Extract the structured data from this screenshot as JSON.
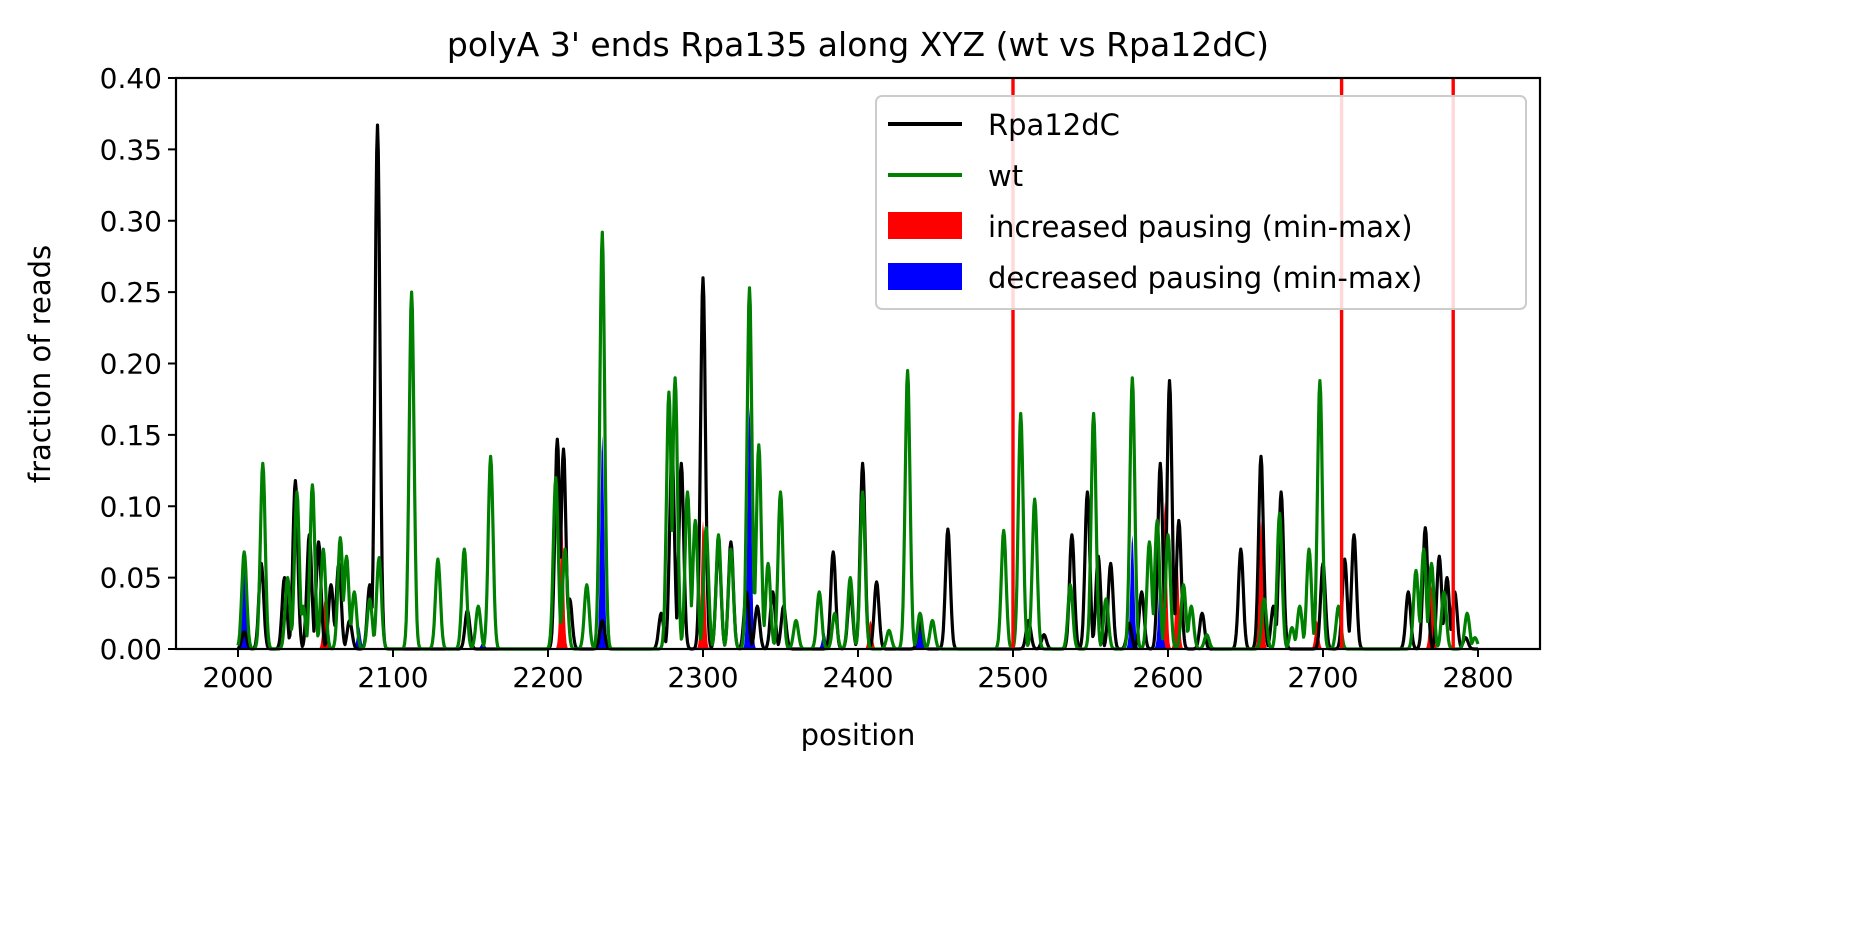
{
  "chart_data": {
    "type": "line",
    "title": "polyA 3' ends Rpa135 along XYZ (wt vs Rpa12dC)",
    "xlabel": "position",
    "ylabel": "fraction of reads",
    "xlim": [
      1960,
      2840
    ],
    "ylim": [
      0,
      0.4
    ],
    "xticks": [
      2000,
      2100,
      2200,
      2300,
      2400,
      2500,
      2600,
      2700,
      2800
    ],
    "yticks": [
      0.0,
      0.05,
      0.1,
      0.15,
      0.2,
      0.25,
      0.3,
      0.35,
      0.4
    ],
    "xtick_labels": [
      "2000",
      "2100",
      "2200",
      "2300",
      "2400",
      "2500",
      "2600",
      "2700",
      "2800"
    ],
    "ytick_labels": [
      "0.00",
      "0.05",
      "0.10",
      "0.15",
      "0.20",
      "0.25",
      "0.30",
      "0.35",
      "0.40"
    ],
    "grid": false,
    "legend_position": "top-right",
    "legend": [
      {
        "label": "Rpa12dC",
        "kind": "line",
        "color": "#000000"
      },
      {
        "label": "wt",
        "kind": "line",
        "color": "#008000"
      },
      {
        "label": "increased pausing (min-max)",
        "kind": "patch",
        "color": "#ff0000"
      },
      {
        "label": "decreased pausing (min-max)",
        "kind": "patch",
        "color": "#0000ff"
      }
    ],
    "vertical_lines": {
      "color": "#ff0000",
      "x": [
        2500,
        2712,
        2784
      ]
    },
    "series": [
      {
        "name": "Rpa12dC",
        "color": "#000000",
        "peaks": [
          [
            2004,
            0.012
          ],
          [
            2015,
            0.06
          ],
          [
            2030,
            0.05
          ],
          [
            2037,
            0.118
          ],
          [
            2046,
            0.08
          ],
          [
            2052,
            0.075
          ],
          [
            2060,
            0.045
          ],
          [
            2065,
            0.06
          ],
          [
            2072,
            0.02
          ],
          [
            2085,
            0.045
          ],
          [
            2090,
            0.367
          ],
          [
            2148,
            0.027
          ],
          [
            2206,
            0.147
          ],
          [
            2210,
            0.14
          ],
          [
            2214,
            0.035
          ],
          [
            2235,
            0.02
          ],
          [
            2273,
            0.025
          ],
          [
            2280,
            0.14
          ],
          [
            2286,
            0.13
          ],
          [
            2300,
            0.26
          ],
          [
            2310,
            0.075
          ],
          [
            2318,
            0.075
          ],
          [
            2328,
            0.04
          ],
          [
            2335,
            0.03
          ],
          [
            2345,
            0.04
          ],
          [
            2352,
            0.03
          ],
          [
            2384,
            0.068
          ],
          [
            2395,
            0.04
          ],
          [
            2403,
            0.13
          ],
          [
            2412,
            0.047
          ],
          [
            2440,
            0.02
          ],
          [
            2458,
            0.084
          ],
          [
            2510,
            0.02
          ],
          [
            2520,
            0.01
          ],
          [
            2538,
            0.08
          ],
          [
            2548,
            0.11
          ],
          [
            2555,
            0.065
          ],
          [
            2563,
            0.06
          ],
          [
            2575,
            0.018
          ],
          [
            2583,
            0.04
          ],
          [
            2595,
            0.13
          ],
          [
            2601,
            0.188
          ],
          [
            2607,
            0.09
          ],
          [
            2622,
            0.025
          ],
          [
            2647,
            0.07
          ],
          [
            2660,
            0.135
          ],
          [
            2668,
            0.03
          ],
          [
            2673,
            0.11
          ],
          [
            2700,
            0.06
          ],
          [
            2714,
            0.063
          ],
          [
            2720,
            0.08
          ],
          [
            2755,
            0.04
          ],
          [
            2766,
            0.085
          ],
          [
            2775,
            0.065
          ],
          [
            2780,
            0.05
          ],
          [
            2785,
            0.04
          ],
          [
            2792,
            0.008
          ]
        ]
      },
      {
        "name": "wt",
        "color": "#008000",
        "peaks": [
          [
            2004,
            0.068
          ],
          [
            2016,
            0.13
          ],
          [
            2032,
            0.05
          ],
          [
            2038,
            0.11
          ],
          [
            2042,
            0.03
          ],
          [
            2048,
            0.115
          ],
          [
            2055,
            0.07
          ],
          [
            2066,
            0.078
          ],
          [
            2070,
            0.065
          ],
          [
            2075,
            0.04
          ],
          [
            2085,
            0.035
          ],
          [
            2091,
            0.064
          ],
          [
            2112,
            0.25
          ],
          [
            2129,
            0.063
          ],
          [
            2146,
            0.07
          ],
          [
            2155,
            0.03
          ],
          [
            2163,
            0.135
          ],
          [
            2205,
            0.12
          ],
          [
            2211,
            0.07
          ],
          [
            2225,
            0.045
          ],
          [
            2235,
            0.292
          ],
          [
            2278,
            0.18
          ],
          [
            2282,
            0.19
          ],
          [
            2290,
            0.11
          ],
          [
            2295,
            0.09
          ],
          [
            2302,
            0.085
          ],
          [
            2310,
            0.08
          ],
          [
            2318,
            0.07
          ],
          [
            2330,
            0.253
          ],
          [
            2336,
            0.143
          ],
          [
            2342,
            0.06
          ],
          [
            2350,
            0.11
          ],
          [
            2360,
            0.02
          ],
          [
            2375,
            0.04
          ],
          [
            2385,
            0.025
          ],
          [
            2395,
            0.05
          ],
          [
            2403,
            0.11
          ],
          [
            2420,
            0.013
          ],
          [
            2432,
            0.195
          ],
          [
            2440,
            0.025
          ],
          [
            2448,
            0.02
          ],
          [
            2494,
            0.083
          ],
          [
            2505,
            0.165
          ],
          [
            2514,
            0.105
          ],
          [
            2537,
            0.045
          ],
          [
            2552,
            0.165
          ],
          [
            2560,
            0.035
          ],
          [
            2577,
            0.19
          ],
          [
            2588,
            0.075
          ],
          [
            2593,
            0.09
          ],
          [
            2600,
            0.08
          ],
          [
            2610,
            0.045
          ],
          [
            2615,
            0.03
          ],
          [
            2625,
            0.01
          ],
          [
            2662,
            0.035
          ],
          [
            2672,
            0.095
          ],
          [
            2680,
            0.015
          ],
          [
            2685,
            0.03
          ],
          [
            2691,
            0.07
          ],
          [
            2698,
            0.188
          ],
          [
            2710,
            0.03
          ],
          [
            2760,
            0.055
          ],
          [
            2765,
            0.07
          ],
          [
            2770,
            0.06
          ],
          [
            2778,
            0.04
          ],
          [
            2793,
            0.025
          ],
          [
            2798,
            0.008
          ]
        ]
      }
    ],
    "increased_pausing_fills": [
      [
        2056,
        0.035
      ],
      [
        2209,
        0.09
      ],
      [
        2300,
        0.09
      ],
      [
        2408,
        0.02
      ],
      [
        2598,
        0.103
      ],
      [
        2606,
        0.06
      ],
      [
        2660,
        0.09
      ],
      [
        2696,
        0.02
      ],
      [
        2770,
        0.045
      ]
    ],
    "decreased_pausing_fills": [
      [
        2004,
        0.055
      ],
      [
        2078,
        0.016
      ],
      [
        2158,
        0.005
      ],
      [
        2235,
        0.15
      ],
      [
        2330,
        0.17
      ],
      [
        2378,
        0.012
      ],
      [
        2440,
        0.018
      ],
      [
        2577,
        0.08
      ],
      [
        2595,
        0.05
      ]
    ]
  }
}
